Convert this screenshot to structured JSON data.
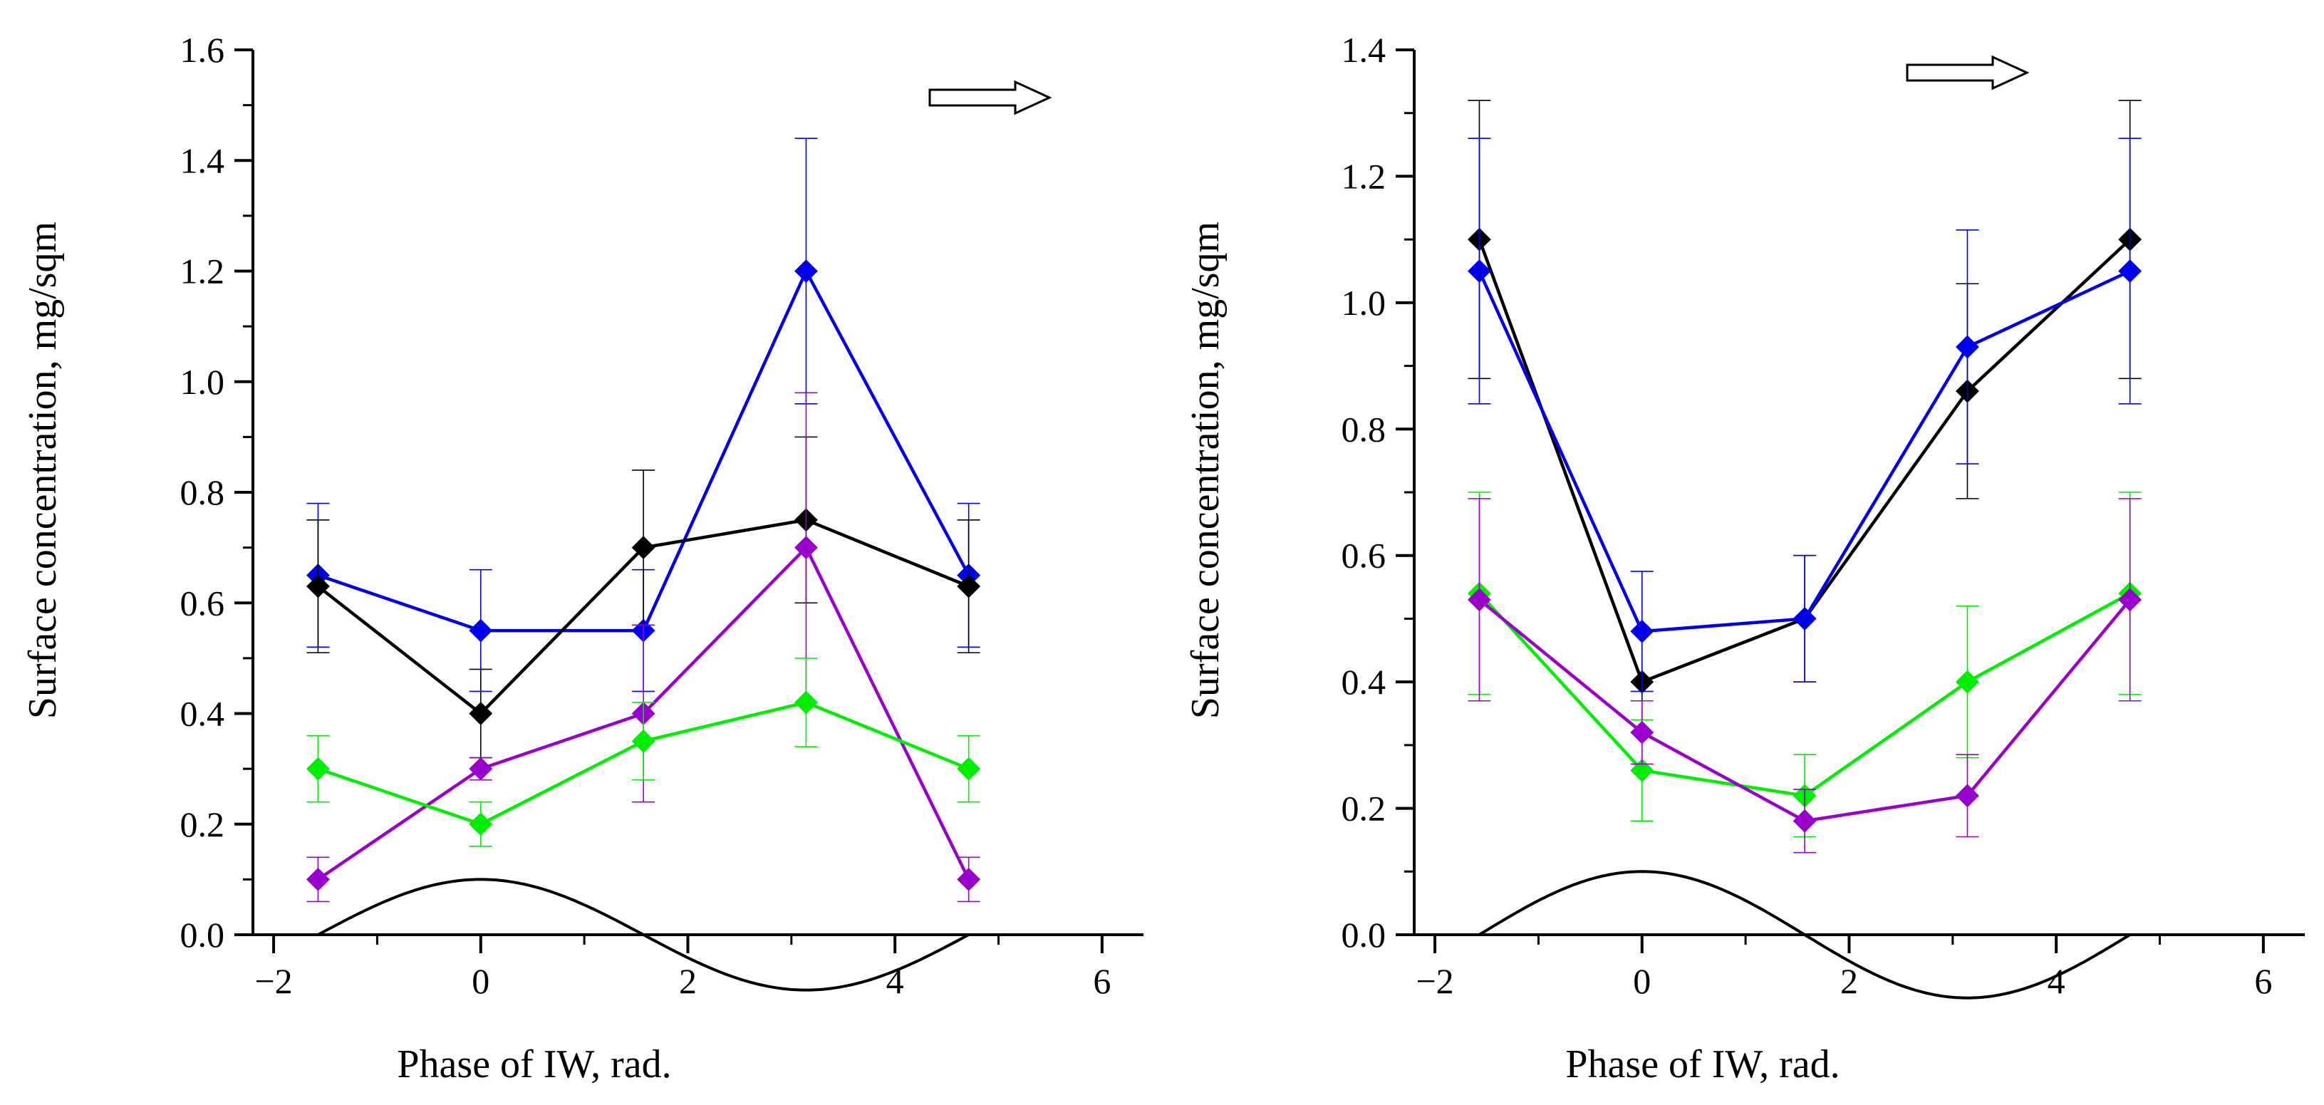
{
  "chart_data": [
    {
      "type": "line",
      "title": "",
      "xlabel": "Phase of IW, rad.",
      "ylabel": "Surface concentration, mg/sqm",
      "xlim": [
        -2.2,
        6.4
      ],
      "ylim": [
        0,
        1.6
      ],
      "xticks": [
        -2,
        0,
        2,
        4,
        6
      ],
      "xtick_labels": [
        "−2",
        "0",
        "2",
        "4",
        "6"
      ],
      "yticks": [
        0.0,
        0.2,
        0.4,
        0.6,
        0.8,
        1.0,
        1.2,
        1.4,
        1.6
      ],
      "ytick_labels": [
        "0.0",
        "0.2",
        "0.4",
        "0.6",
        "0.8",
        "1.0",
        "1.2",
        "1.4",
        "1.6"
      ],
      "grid": false,
      "x": [
        -1.571,
        0,
        1.571,
        3.142,
        4.712
      ],
      "series": [
        {
          "color": "#0000ee",
          "values": [
            0.65,
            0.55,
            0.55,
            1.2,
            0.65
          ],
          "errors": [
            0.13,
            0.11,
            0.11,
            0.24,
            0.13
          ]
        },
        {
          "color": "#000000",
          "values": [
            0.63,
            0.4,
            0.7,
            0.75,
            0.63
          ],
          "errors": [
            0.12,
            0.08,
            0.14,
            0.15,
            0.12
          ]
        },
        {
          "color": "#9900cc",
          "values": [
            0.1,
            0.3,
            0.4,
            0.7,
            0.1
          ],
          "errors": [
            0.04,
            0.02,
            0.16,
            0.28,
            0.04
          ]
        },
        {
          "color": "#00ee00",
          "values": [
            0.3,
            0.2,
            0.35,
            0.42,
            0.3
          ],
          "errors": [
            0.06,
            0.04,
            0.07,
            0.08,
            0.06
          ]
        }
      ],
      "wave": {
        "color": "#000000",
        "amplitude": 0.1,
        "offset": 0.0,
        "x_start": -1.571,
        "x_end": 4.712
      },
      "arrow_annotation": "hollow right arrow (top-right)"
    },
    {
      "type": "line",
      "title": "",
      "xlabel": "Phase of IW, rad.",
      "ylabel": "Surface concentration, mg/sqm",
      "xlim": [
        -2.2,
        6.4
      ],
      "ylim": [
        0,
        1.4
      ],
      "xticks": [
        -2,
        0,
        2,
        4,
        6
      ],
      "xtick_labels": [
        "−2",
        "0",
        "2",
        "4",
        "6"
      ],
      "yticks": [
        0.0,
        0.2,
        0.4,
        0.6,
        0.8,
        1.0,
        1.2,
        1.4
      ],
      "ytick_labels": [
        "0.0",
        "0.2",
        "0.4",
        "0.6",
        "0.8",
        "1.0",
        "1.2",
        "1.4"
      ],
      "grid": false,
      "x": [
        -1.571,
        0,
        1.571,
        3.142,
        4.712
      ],
      "series": [
        {
          "color": "#000000",
          "values": [
            1.1,
            0.4,
            0.5,
            0.86,
            1.1
          ],
          "errors": [
            0.22,
            0.08,
            0.1,
            0.17,
            0.22
          ]
        },
        {
          "color": "#0000ee",
          "values": [
            1.05,
            0.48,
            0.5,
            0.93,
            1.05
          ],
          "errors": [
            0.21,
            0.095,
            0.1,
            0.185,
            0.21
          ]
        },
        {
          "color": "#00ee00",
          "values": [
            0.54,
            0.26,
            0.22,
            0.4,
            0.54
          ],
          "errors": [
            0.16,
            0.08,
            0.065,
            0.12,
            0.16
          ]
        },
        {
          "color": "#9900cc",
          "values": [
            0.53,
            0.32,
            0.18,
            0.22,
            0.53
          ],
          "errors": [
            0.16,
            0.05,
            0.05,
            0.065,
            0.16
          ]
        }
      ],
      "wave": {
        "color": "#000000",
        "amplitude": 0.1,
        "offset": 0.0,
        "x_start": -1.571,
        "x_end": 4.712
      },
      "arrow_annotation": "hollow right arrow (top-right)"
    }
  ]
}
